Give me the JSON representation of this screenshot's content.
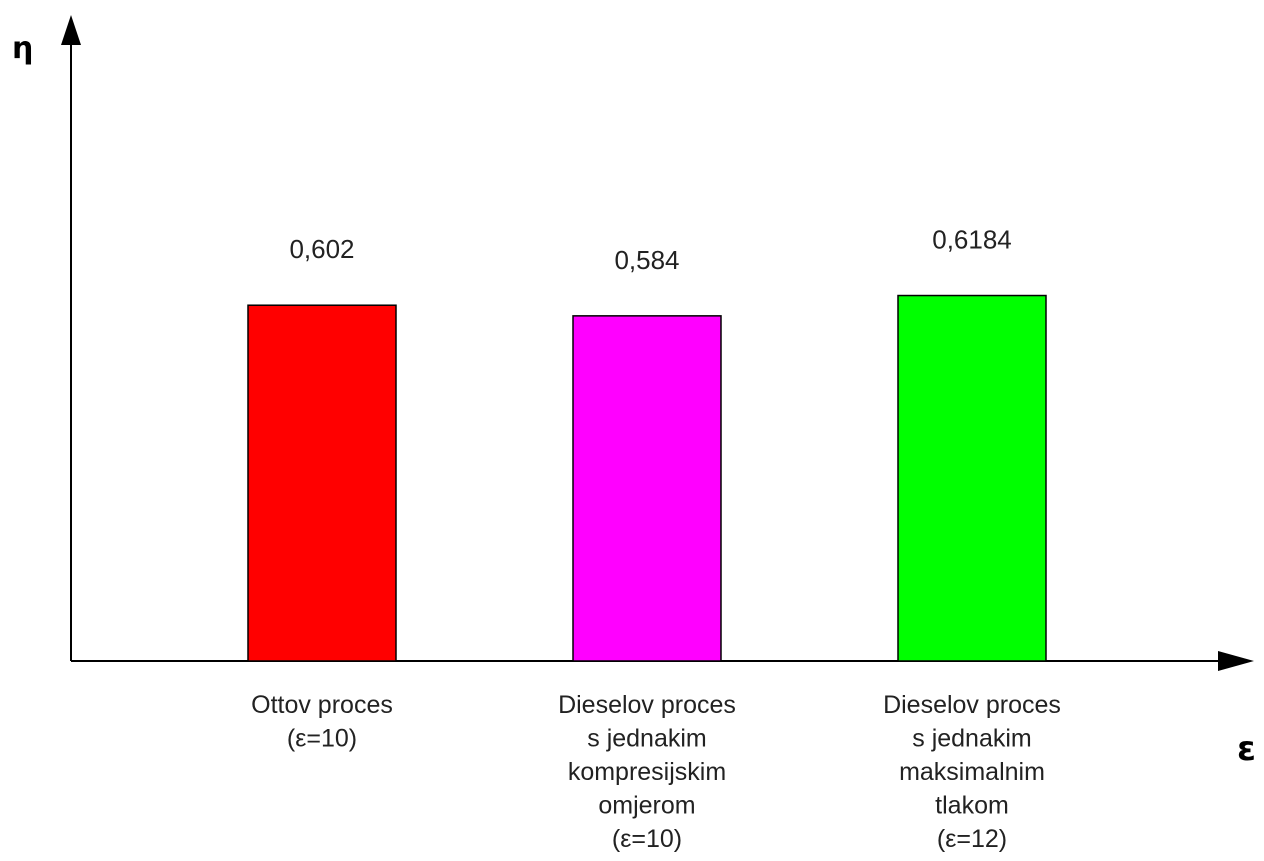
{
  "chart_data": {
    "type": "bar",
    "title": "",
    "ylabel": "η",
    "xlabel": "ε",
    "ylim": [
      0,
      1.0
    ],
    "grid": false,
    "categories": [
      [
        "Ottov proces",
        "(ε=10)"
      ],
      [
        "Dieselov proces",
        "s jednakim",
        "kompresijskim",
        "omjerom",
        "(ε=10)"
      ],
      [
        "Dieselov proces",
        "s jednakim",
        "maksimalnim",
        "tlakom",
        "(ε=12)"
      ]
    ],
    "values": [
      0.602,
      0.584,
      0.6184
    ],
    "value_labels": [
      "0,602",
      "0,584",
      "0,6184"
    ],
    "colors": [
      "#ff0000",
      "#ff00ff",
      "#00ff00"
    ]
  }
}
